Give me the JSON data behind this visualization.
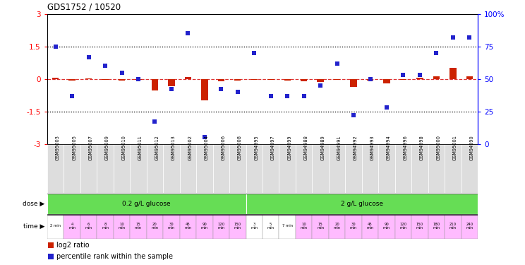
{
  "title": "GDS1752 / 10520",
  "samples": [
    "GSM95003",
    "GSM95005",
    "GSM95007",
    "GSM95009",
    "GSM95010",
    "GSM95011",
    "GSM95012",
    "GSM95013",
    "GSM95002",
    "GSM95004",
    "GSM95006",
    "GSM95008",
    "GSM94995",
    "GSM94997",
    "GSM94999",
    "GSM94988",
    "GSM94989",
    "GSM94991",
    "GSM94992",
    "GSM94993",
    "GSM94994",
    "GSM94996",
    "GSM94998",
    "GSM95000",
    "GSM95001",
    "GSM94990"
  ],
  "log2_ratio": [
    0.05,
    -0.08,
    0.04,
    -0.04,
    -0.06,
    -0.04,
    -0.52,
    -0.32,
    0.1,
    -1.0,
    -0.1,
    -0.08,
    -0.04,
    -0.04,
    -0.08,
    -0.12,
    -0.15,
    -0.04,
    -0.38,
    -0.06,
    -0.22,
    -0.04,
    0.05,
    0.12,
    0.5,
    0.12
  ],
  "percentile_rank": [
    75,
    37,
    67,
    60,
    55,
    50,
    17,
    42,
    85,
    5,
    42,
    40,
    70,
    37,
    37,
    37,
    45,
    62,
    22,
    50,
    28,
    53,
    53,
    70,
    82,
    82
  ],
  "dose_labels": [
    "0.2 g/L glucose",
    "2 g/L glucose"
  ],
  "dose_starts": [
    0,
    12
  ],
  "dose_ends": [
    12,
    26
  ],
  "dose_color": "#66dd55",
  "time_labels": [
    "2 min",
    "4\nmin",
    "6\nmin",
    "8\nmin",
    "10\nmin",
    "15\nmin",
    "20\nmin",
    "30\nmin",
    "45\nmin",
    "90\nmin",
    "120\nmin",
    "150\nmin",
    "3\nmin",
    "5\nmin",
    "7 min",
    "10\nmin",
    "15\nmin",
    "20\nmin",
    "30\nmin",
    "45\nmin",
    "90\nmin",
    "120\nmin",
    "150\nmin",
    "180\nmin",
    "210\nmin",
    "240\nmin"
  ],
  "time_bg": [
    "#ffffff",
    "#ffbbff",
    "#ffbbff",
    "#ffbbff",
    "#ffbbff",
    "#ffbbff",
    "#ffbbff",
    "#ffbbff",
    "#ffbbff",
    "#ffbbff",
    "#ffbbff",
    "#ffbbff",
    "#ffffff",
    "#ffffff",
    "#ffffff",
    "#ffbbff",
    "#ffbbff",
    "#ffbbff",
    "#ffbbff",
    "#ffbbff",
    "#ffbbff",
    "#ffbbff",
    "#ffbbff",
    "#ffbbff",
    "#ffbbff",
    "#ffbbff"
  ],
  "bar_color": "#cc2200",
  "square_color": "#2222cc",
  "ylim": [
    -3,
    3
  ],
  "yticks_l": [
    -3,
    -1.5,
    0,
    1.5,
    3
  ],
  "yticks_r": [
    0,
    25,
    50,
    75,
    100
  ],
  "dotted_lines": [
    1.5,
    -1.5
  ],
  "zero_line_color": "#dd3333",
  "fig_bg": "#ffffff",
  "cell_bg": "#dddddd"
}
